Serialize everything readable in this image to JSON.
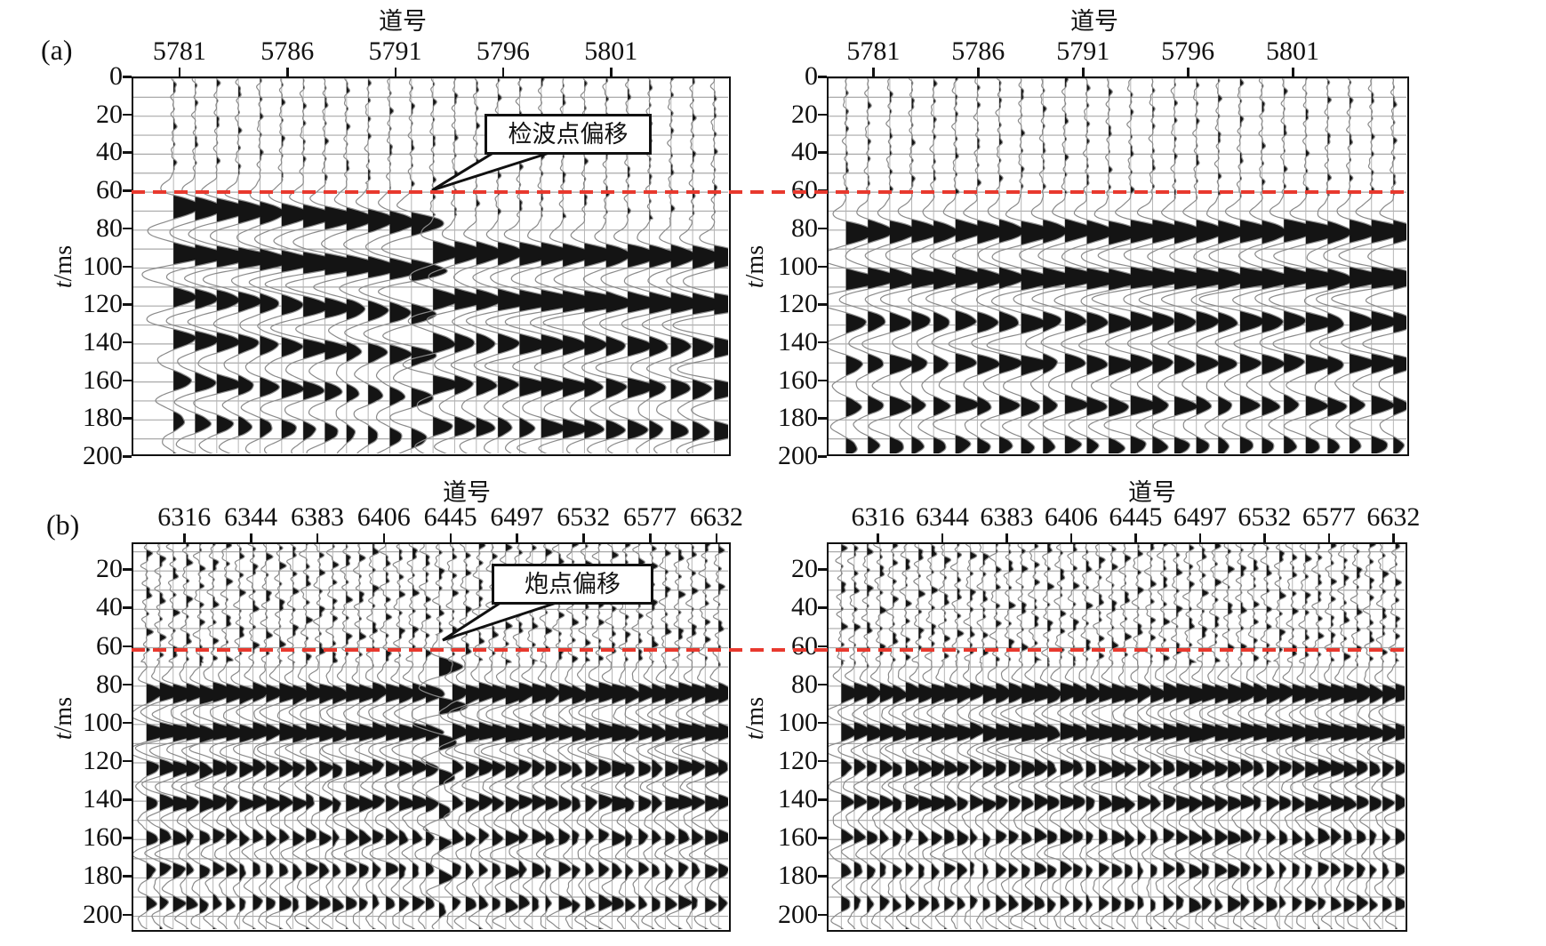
{
  "labels": {
    "panel_a": "(a)",
    "panel_b": "(b)",
    "x_axis_title": "道号",
    "y_title_italic": "t",
    "y_title_rest": "/ms"
  },
  "annotations": {
    "receiver_offset": {
      "text": "检波点偏移",
      "panel": "a-left",
      "points_to_trace_index": 12
    },
    "shot_offset": {
      "text": "炮点偏移",
      "panel": "b-left",
      "points_to_trace_index": 22
    }
  },
  "colors": {
    "red_dashed": "#e8392e",
    "trace_fill": "#141414",
    "trace_line": "#8a8a8a",
    "grid_line": "#a9a9a9",
    "baseline": "#b5b5b5",
    "border": "#111111"
  },
  "chart_data": {
    "type": "line",
    "subtype": "seismic-wiggle-variable-area",
    "title": "",
    "description": "Four seismic shot-record wiggle panels. Row (a): receiver-point offset anomaly (left, first breaks step from ~62-71 ms down to ~86-89 ms after trace 5791) and corrected record (right, first breaks aligned ~75 ms). Row (b): shot-point offset anomaly (left, one early trace near 6445 at ~65 ms vs ~79 ms background) and corrected record (right). Red dashed datum line drawn across both panels of each row.",
    "x_axis_title": "道号",
    "y_axis_title": "t/ms",
    "grid": true,
    "panels": [
      {
        "id": "a-left",
        "row": "a",
        "panel_letter": "(a)",
        "x_tick_labels": [
          "5781",
          "5786",
          "5791",
          "5796",
          "5801"
        ],
        "y_tick_labels": [
          "0",
          "20",
          "40",
          "60",
          "80",
          "100",
          "120",
          "140",
          "160",
          "180",
          "200"
        ],
        "y_tick_values": [
          0,
          20,
          40,
          60,
          80,
          100,
          120,
          140,
          160,
          180,
          200
        ],
        "t_range_ms": [
          0,
          200
        ],
        "trace_count": 26,
        "first_break_times_ms": [
          62.0,
          62.9,
          63.7,
          64.6,
          65.4,
          66.2,
          67.0,
          67.8,
          68.6,
          69.4,
          70.2,
          71.0,
          86.0,
          86.2,
          86.5,
          86.7,
          86.9,
          87.1,
          87.3,
          87.5,
          87.7,
          87.9,
          88.1,
          88.3,
          88.5,
          88.7
        ],
        "red_dashed_line_t_ms": 61,
        "annotation_text": "检波点偏移"
      },
      {
        "id": "a-right",
        "row": "a",
        "panel_letter": "(a)",
        "x_tick_labels": [
          "5781",
          "5786",
          "5791",
          "5796",
          "5801"
        ],
        "y_tick_labels": [
          "0",
          "20",
          "40",
          "60",
          "80",
          "100",
          "120",
          "140",
          "160",
          "180",
          "200"
        ],
        "y_tick_values": [
          0,
          20,
          40,
          60,
          80,
          100,
          120,
          140,
          160,
          180,
          200
        ],
        "t_range_ms": [
          0,
          200
        ],
        "trace_count": 26,
        "first_break_times_ms": [
          75.8,
          75.1,
          75.5,
          74.8,
          75.2,
          74.7,
          75.3,
          74.9,
          75.6,
          75.0,
          74.6,
          75.2,
          75.7,
          75.1,
          74.8,
          75.4,
          75.0,
          75.5,
          74.9,
          75.3,
          74.7,
          75.2,
          75.6,
          75.0,
          74.8,
          75.3
        ],
        "red_dashed_line_t_ms": 61,
        "annotation_text": ""
      },
      {
        "id": "b-left",
        "row": "b",
        "panel_letter": "(b)",
        "x_tick_labels": [
          "6316",
          "6344",
          "6383",
          "6406",
          "6445",
          "6497",
          "6532",
          "6577",
          "6632"
        ],
        "y_tick_labels": [
          "20",
          "40",
          "60",
          "80",
          "100",
          "120",
          "140",
          "160",
          "180",
          "200"
        ],
        "y_tick_values": [
          20,
          40,
          60,
          80,
          100,
          120,
          140,
          160,
          180,
          200
        ],
        "t_range_ms": [
          6,
          209
        ],
        "trace_count": 44,
        "first_break_times_ms": [
          79.2,
          78.6,
          79.5,
          78.9,
          79.8,
          78.4,
          79.1,
          79.6,
          78.7,
          79.3,
          78.9,
          79.7,
          78.5,
          79.2,
          79.8,
          78.8,
          79.4,
          78.6,
          79.1,
          79.5,
          78.9,
          79.3,
          65.5,
          79.0,
          79.6,
          78.7,
          79.2,
          79.8,
          78.5,
          79.1,
          79.4,
          78.8,
          79.6,
          79.0,
          78.6,
          79.3,
          79.7,
          78.9,
          79.2,
          79.5,
          78.7,
          79.1,
          79.4,
          78.8
        ],
        "red_dashed_line_t_ms": 62,
        "annotation_text": "炮点偏移"
      },
      {
        "id": "b-right",
        "row": "b",
        "panel_letter": "(b)",
        "x_tick_labels": [
          "6316",
          "6344",
          "6383",
          "6406",
          "6445",
          "6497",
          "6532",
          "6577",
          "6632"
        ],
        "y_tick_labels": [
          "20",
          "40",
          "60",
          "80",
          "100",
          "120",
          "140",
          "160",
          "180",
          "200"
        ],
        "y_tick_values": [
          20,
          40,
          60,
          80,
          100,
          120,
          140,
          160,
          180,
          200
        ],
        "t_range_ms": [
          6,
          209
        ],
        "trace_count": 44,
        "first_break_times_ms": [
          79.1,
          78.7,
          79.4,
          78.9,
          79.6,
          78.5,
          79.2,
          79.5,
          78.8,
          79.3,
          78.6,
          79.7,
          78.9,
          79.1,
          79.5,
          78.7,
          79.3,
          78.6,
          79.0,
          79.4,
          78.8,
          79.2,
          79.6,
          78.9,
          79.3,
          78.5,
          79.1,
          79.7,
          78.8,
          79.2,
          79.5,
          78.6,
          79.0,
          79.4,
          78.9,
          79.3,
          79.6,
          78.7,
          79.1,
          79.5,
          78.8,
          79.2,
          79.4,
          78.9
        ],
        "red_dashed_line_t_ms": 62,
        "annotation_text": ""
      }
    ]
  }
}
